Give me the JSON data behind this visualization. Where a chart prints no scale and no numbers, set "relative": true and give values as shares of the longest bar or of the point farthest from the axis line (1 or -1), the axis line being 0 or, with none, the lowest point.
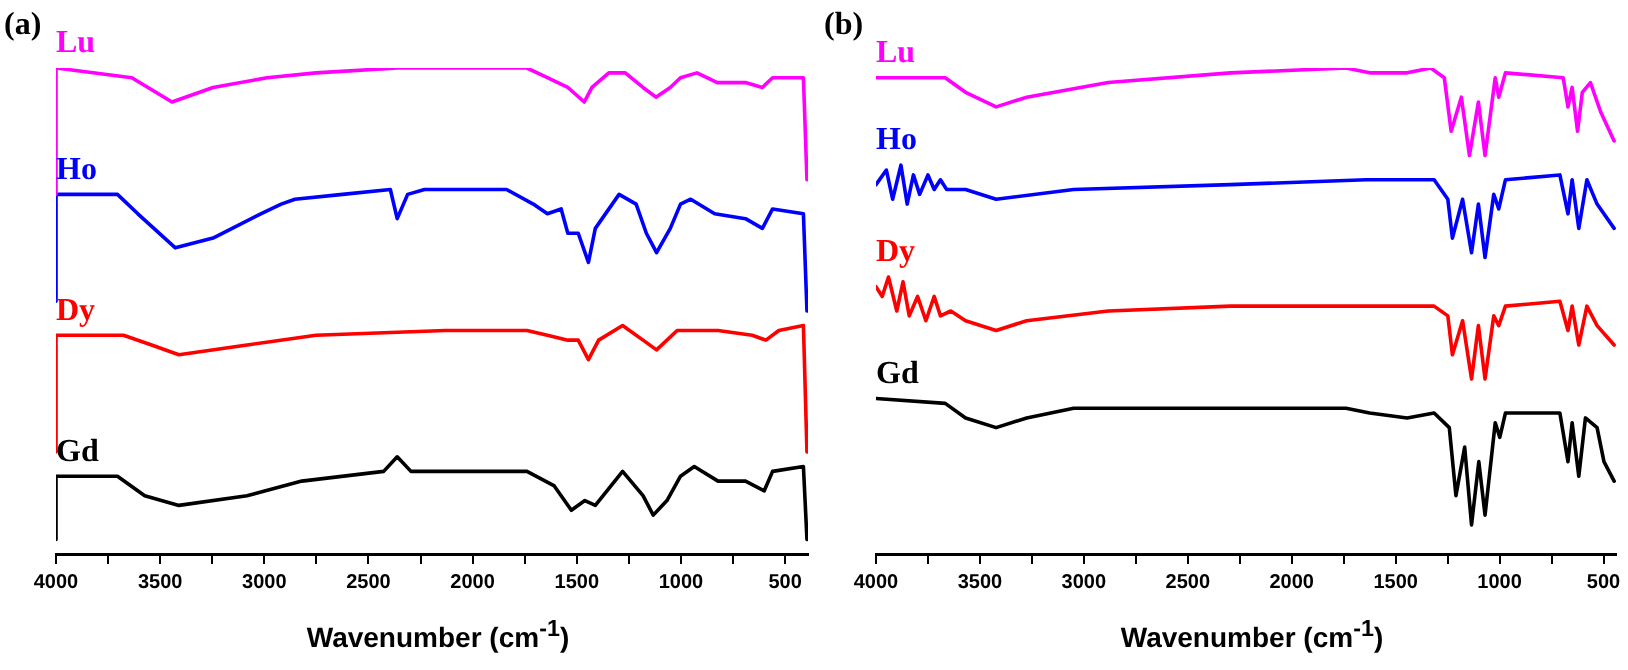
{
  "chart_data": [
    {
      "type": "line",
      "title": "(a)",
      "xlabel": "Wavenumber (cm$^{-1}$)",
      "relative": true,
      "marker": "none",
      "xlim": [
        4000,
        390
      ],
      "xticks": [
        4000,
        {
          "value": 3750,
          "label": null
        },
        3500,
        {
          "value": 3250,
          "label": null
        },
        3000,
        {
          "value": 2750,
          "label": null
        },
        2500,
        {
          "value": 2250,
          "label": null
        },
        2000,
        {
          "value": 1750,
          "label": null
        },
        1500,
        {
          "value": 1250,
          "label": null
        },
        1000,
        {
          "value": 750,
          "label": null
        },
        500
      ],
      "series": [
        {
          "name": "Lu",
          "color": "#ff00ff",
          "x": [
            4000,
            4000,
            3636,
            3443,
            3246,
            2987,
            2752,
            2361,
            1739,
            1641,
            1543,
            1464,
            1427,
            1346,
            1267,
            1182,
            1120,
            1051,
            1002,
            923,
            825,
            690,
            609,
            560,
            412,
            395
          ],
          "values": [
            0.74,
            1.0,
            0.98,
            0.93,
            0.96,
            0.98,
            0.99,
            1.0,
            1.0,
            0.98,
            0.96,
            0.93,
            0.96,
            0.99,
            0.99,
            0.96,
            0.94,
            0.96,
            0.98,
            0.99,
            0.97,
            0.97,
            0.96,
            0.98,
            0.98,
            0.77
          ]
        },
        {
          "name": "Ho",
          "color": "#0000ff",
          "x": [
            4000,
            4000,
            3705,
            3607,
            3427,
            3246,
            3017,
            2919,
            2853,
            2624,
            2395,
            2362,
            2312,
            2231,
            1837,
            1709,
            1641,
            1575,
            1543,
            1493,
            1444,
            1411,
            1297,
            1215,
            1166,
            1117,
            1051,
            1002,
            953,
            838,
            690,
            609,
            560,
            412,
            395
          ],
          "values": [
            0.52,
            0.74,
            0.74,
            0.7,
            0.63,
            0.65,
            0.7,
            0.72,
            0.73,
            0.74,
            0.75,
            0.69,
            0.74,
            0.75,
            0.75,
            0.72,
            0.7,
            0.71,
            0.66,
            0.66,
            0.6,
            0.67,
            0.74,
            0.72,
            0.66,
            0.62,
            0.67,
            0.72,
            0.73,
            0.7,
            0.69,
            0.67,
            0.71,
            0.7,
            0.5
          ]
        },
        {
          "name": "Dy",
          "color": "#ff0000",
          "x": [
            4000,
            4000,
            3676,
            3541,
            3410,
            3083,
            2752,
            2132,
            1739,
            1641,
            1543,
            1493,
            1444,
            1395,
            1280,
            1182,
            1117,
            1018,
            822,
            658,
            592,
            530,
            412,
            395
          ],
          "values": [
            0.21,
            0.45,
            0.45,
            0.43,
            0.41,
            0.43,
            0.45,
            0.46,
            0.46,
            0.45,
            0.44,
            0.44,
            0.4,
            0.44,
            0.47,
            0.44,
            0.42,
            0.46,
            0.46,
            0.45,
            0.44,
            0.46,
            0.47,
            0.21
          ]
        },
        {
          "name": "Gd",
          "color": "#000000",
          "x": [
            4000,
            4000,
            3705,
            3574,
            3410,
            3083,
            2820,
            2427,
            2362,
            2296,
            2231,
            1739,
            1608,
            1526,
            1461,
            1411,
            1280,
            1182,
            1133,
            1067,
            1002,
            936,
            822,
            690,
            600,
            560,
            412,
            395
          ],
          "values": [
            0.03,
            0.16,
            0.16,
            0.12,
            0.1,
            0.12,
            0.15,
            0.17,
            0.2,
            0.17,
            0.17,
            0.17,
            0.14,
            0.09,
            0.11,
            0.1,
            0.17,
            0.12,
            0.08,
            0.11,
            0.16,
            0.18,
            0.15,
            0.15,
            0.13,
            0.17,
            0.18,
            0.03
          ]
        }
      ]
    },
    {
      "type": "line",
      "title": "(b)",
      "xlabel": "Wavenumber (cm$^{-1}$)",
      "relative": true,
      "marker": "none",
      "xlim": [
        4000,
        440
      ],
      "xticks": [
        4000,
        {
          "value": 3750,
          "label": null
        },
        3500,
        {
          "value": 3250,
          "label": null
        },
        3000,
        {
          "value": 2750,
          "label": null
        },
        2500,
        {
          "value": 2250,
          "label": null
        },
        2000,
        {
          "value": 1750,
          "label": null
        },
        1500,
        {
          "value": 1250,
          "label": null
        },
        1000,
        {
          "value": 750,
          "label": null
        },
        500
      ],
      "series": [
        {
          "name": "Lu",
          "color": "#ff00ff",
          "x": [
            4000,
            3667,
            3569,
            3422,
            3275,
            2883,
            2295,
            1739,
            1625,
            1445,
            1331,
            1266,
            1233,
            1184,
            1145,
            1102,
            1070,
            1021,
            1004,
            972,
            694,
            671,
            651,
            625,
            602,
            563,
            514,
            449
          ],
          "values": [
            0.98,
            0.98,
            0.95,
            0.92,
            0.94,
            0.97,
            0.99,
            1.0,
            0.99,
            0.99,
            1.0,
            0.98,
            0.87,
            0.94,
            0.82,
            0.93,
            0.82,
            0.98,
            0.94,
            0.99,
            0.98,
            0.92,
            0.96,
            0.87,
            0.95,
            0.97,
            0.91,
            0.85
          ]
        },
        {
          "name": "Ho",
          "color": "#0000ff",
          "x": [
            4000,
            3950,
            3920,
            3880,
            3850,
            3820,
            3790,
            3750,
            3720,
            3690,
            3660,
            3569,
            3422,
            3049,
            2295,
            1641,
            1413,
            1315,
            1249,
            1227,
            1178,
            1135,
            1102,
            1070,
            1028,
            1004,
            972,
            710,
            671,
            651,
            619,
            580,
            531,
            449
          ],
          "values": [
            0.76,
            0.79,
            0.73,
            0.8,
            0.72,
            0.78,
            0.74,
            0.78,
            0.75,
            0.77,
            0.75,
            0.75,
            0.73,
            0.75,
            0.76,
            0.77,
            0.77,
            0.77,
            0.73,
            0.65,
            0.73,
            0.62,
            0.72,
            0.61,
            0.74,
            0.71,
            0.77,
            0.78,
            0.7,
            0.77,
            0.67,
            0.77,
            0.72,
            0.67
          ]
        },
        {
          "name": "Dy",
          "color": "#ff0000",
          "x": [
            4000,
            3970,
            3940,
            3900,
            3870,
            3840,
            3800,
            3760,
            3720,
            3690,
            3640,
            3569,
            3422,
            3275,
            2883,
            2295,
            1641,
            1315,
            1249,
            1227,
            1178,
            1135,
            1102,
            1070,
            1028,
            1004,
            972,
            710,
            671,
            651,
            619,
            580,
            531,
            449
          ],
          "values": [
            0.55,
            0.53,
            0.57,
            0.5,
            0.56,
            0.49,
            0.53,
            0.48,
            0.53,
            0.49,
            0.5,
            0.48,
            0.46,
            0.48,
            0.5,
            0.51,
            0.51,
            0.51,
            0.49,
            0.41,
            0.48,
            0.36,
            0.47,
            0.36,
            0.49,
            0.47,
            0.51,
            0.52,
            0.46,
            0.51,
            0.43,
            0.51,
            0.47,
            0.43
          ]
        },
        {
          "name": "Gd",
          "color": "#000000",
          "x": [
            4000,
            3667,
            3569,
            3422,
            3275,
            3049,
            2295,
            1739,
            1625,
            1445,
            1315,
            1242,
            1210,
            1168,
            1135,
            1100,
            1070,
            1021,
            999,
            972,
            710,
            671,
            651,
            619,
            587,
            531,
            498,
            449
          ],
          "values": [
            0.32,
            0.31,
            0.28,
            0.26,
            0.28,
            0.3,
            0.3,
            0.3,
            0.29,
            0.28,
            0.29,
            0.26,
            0.12,
            0.22,
            0.06,
            0.19,
            0.08,
            0.27,
            0.24,
            0.29,
            0.29,
            0.19,
            0.27,
            0.16,
            0.28,
            0.26,
            0.19,
            0.15
          ]
        }
      ]
    }
  ]
}
